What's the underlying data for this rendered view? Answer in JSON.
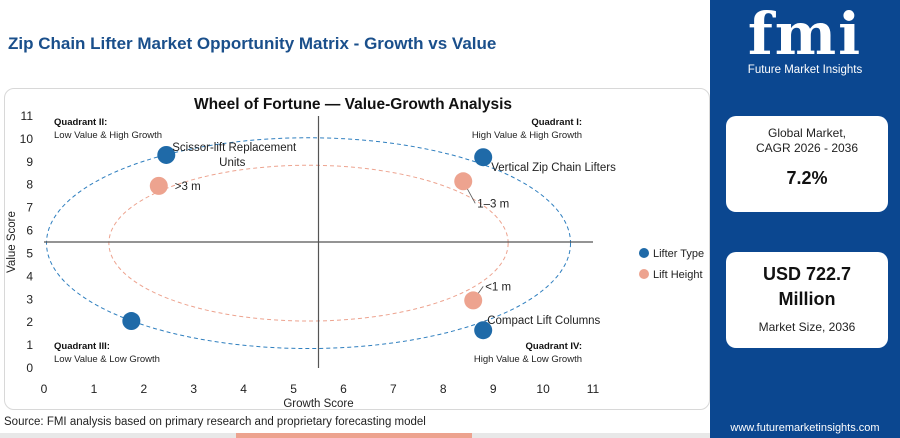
{
  "header": {
    "title": "Zip Chain Lifter Market Opportunity Matrix - Growth vs Value"
  },
  "source": "Source: FMI analysis based on primary research and proprietary forecasting model",
  "sidebar": {
    "logo_text": "fmi",
    "logo_subtitle": "Future Market Insights",
    "card1": {
      "label_line1": "Global Market,",
      "label_line2": "CAGR 2026 - 2036",
      "value": "7.2%"
    },
    "card2": {
      "value_line1": "USD 722.7",
      "value_line2": "Million",
      "label": "Market Size, 2036"
    },
    "website": "www.futuremarketinsights.com"
  },
  "colors": {
    "brand": "#0b4790",
    "title": "#1a4f8b",
    "lifter_type": "#1f6aa8",
    "lift_height": "#eda38f",
    "ellipse_outer": "#2f7fbf",
    "ellipse_inner": "#eda38f",
    "bar": [
      "#0b4790",
      "#e85c3c",
      "#f4a34a",
      "#7dbb5a",
      "#3aa6c9"
    ]
  },
  "chart_data": {
    "type": "scatter",
    "title": "Wheel of Fortune — Value-Growth Analysis",
    "xlabel": "Growth Score",
    "ylabel": "Value Score",
    "xlim": [
      0,
      11
    ],
    "ylim": [
      0,
      11
    ],
    "xticks": [
      0,
      1,
      2,
      3,
      4,
      5,
      6,
      7,
      8,
      9,
      10,
      11
    ],
    "yticks": [
      0,
      1,
      2,
      3,
      4,
      5,
      6,
      7,
      8,
      9,
      10,
      11
    ],
    "divider_x": 5.5,
    "divider_y": 5.5,
    "legend_position": "right",
    "quadrants": [
      {
        "title": "Quadrant II:",
        "subtitle": "Low Value & High Growth",
        "position": "top-left"
      },
      {
        "title": "Quadrant I:",
        "subtitle": "High Value & High Growth",
        "position": "top-right"
      },
      {
        "title": "Quadrant III:",
        "subtitle": "Low Value & Low Growth",
        "position": "bottom-left"
      },
      {
        "title": "Quadrant IV:",
        "subtitle": "High Value & Low Growth",
        "position": "bottom-right"
      }
    ],
    "series": [
      {
        "name": "Lifter Type",
        "points": [
          {
            "x": 2.45,
            "y": 9.3,
            "label_line1": "Scissor-lift Replacement",
            "label_line2": "Units"
          },
          {
            "x": 8.8,
            "y": 9.2,
            "label_line1": "Vertical Zip Chain Lifters",
            "label_line2": ""
          },
          {
            "x": 1.75,
            "y": 2.05,
            "label_line1": "",
            "label_line2": ""
          },
          {
            "x": 8.8,
            "y": 1.65,
            "label_line1": "Compact Lift Columns",
            "label_line2": ""
          }
        ]
      },
      {
        "name": "Lift Height",
        "points": [
          {
            "x": 2.3,
            "y": 7.95,
            "label_line1": ">3 m",
            "label_line2": ""
          },
          {
            "x": 8.4,
            "y": 8.15,
            "label_line1": "1–3 m",
            "label_line2": ""
          },
          {
            "x": 8.6,
            "y": 2.95,
            "label_line1": "<1 m",
            "label_line2": ""
          }
        ]
      }
    ],
    "ellipses": [
      {
        "cx": 5.3,
        "cy": 5.45,
        "rx": 5.25,
        "ry": 4.6
      },
      {
        "cx": 5.3,
        "cy": 5.45,
        "rx": 4.0,
        "ry": 3.4
      }
    ]
  }
}
